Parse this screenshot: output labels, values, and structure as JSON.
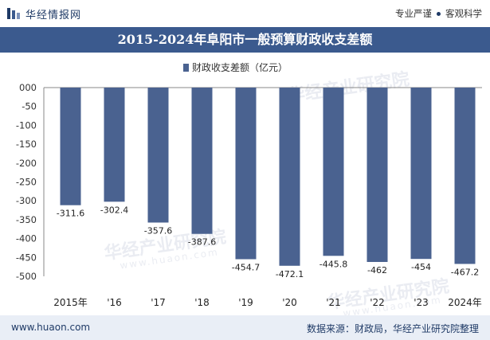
{
  "brand": {
    "name": "华经情报网",
    "tagline_1": "专业严谨",
    "tagline_2": "客观科学"
  },
  "title": "2015-2024年阜阳市一般预算财政收支差额",
  "footer": {
    "url": "www.huaon.com",
    "source": "数据来源：财政局，华经产业研究院整理"
  },
  "watermark": {
    "text": "华经产业研究院",
    "sub": "www.huaon.com"
  },
  "colors": {
    "bar": "#4a6290",
    "title_bg": "#3b5a8e",
    "brand": "#1f3a66"
  },
  "chart_data": {
    "type": "bar",
    "categories": [
      "2015年",
      "'16",
      "'17",
      "'18",
      "'19",
      "'20",
      "'21",
      "'22",
      "'23",
      "2024年"
    ],
    "series": [
      {
        "name": "财政收支差额（亿元）",
        "values": [
          -311.6,
          -302.4,
          -357.6,
          -387.6,
          -454.7,
          -472.1,
          -445.8,
          -462,
          -454,
          -467.2
        ]
      }
    ],
    "data_labels": [
      "-311.6",
      "-302.4",
      "-357.6",
      "-387.6",
      "-454.7",
      "-472.1",
      "-445.8",
      "-462",
      "-454",
      "-467.2"
    ],
    "y_ticks": [
      "000",
      "-50",
      "-100",
      "-150",
      "-200",
      "-250",
      "-300",
      "-350",
      "-400",
      "-450",
      "-500"
    ],
    "ylim": [
      -500,
      0
    ],
    "legend_position": "top-center",
    "grid": false
  }
}
